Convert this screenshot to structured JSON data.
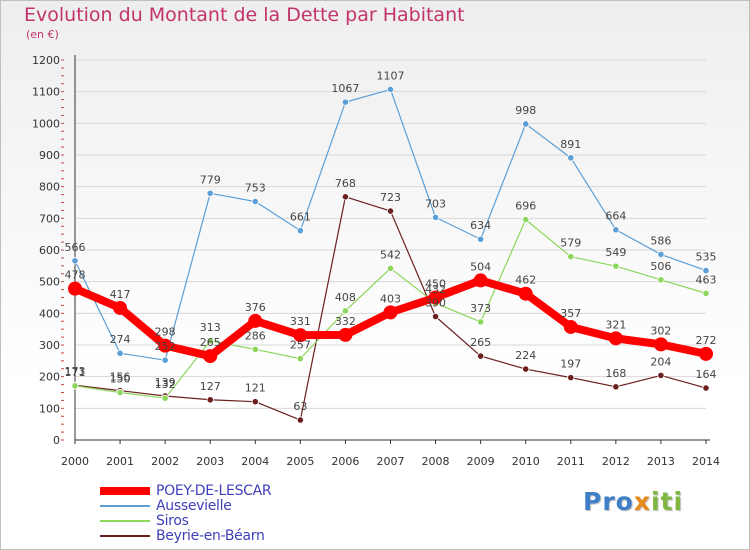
{
  "header": {
    "title": "Evolution du Montant de la Dette par Habitant",
    "unit": "(en €)"
  },
  "logo": {
    "part1": "Pro",
    "part2": "x",
    "part3": "iti"
  },
  "colors": {
    "axis": "#333333",
    "grid": "#d8d8d8",
    "tick_text": "#333333",
    "label_text": "#444444"
  },
  "chart_data": {
    "type": "line",
    "title": "Evolution du Montant de la Dette par Habitant",
    "subtitle": "(en €)",
    "xlabel": "",
    "ylabel": "",
    "x": [
      "2000",
      "2001",
      "2002",
      "2003",
      "2004",
      "2005",
      "2006",
      "2007",
      "2008",
      "2009",
      "2010",
      "2011",
      "2012",
      "2013",
      "2014"
    ],
    "ylim": [
      0,
      1200
    ],
    "yticks": [
      0,
      100,
      200,
      300,
      400,
      500,
      600,
      700,
      800,
      900,
      1000,
      1100,
      1200
    ],
    "grid": "horizontal",
    "legend": "bottom-left",
    "series": [
      {
        "name": "POEY-DE-LESCAR",
        "color": "#ff0000",
        "values": [
          478,
          417,
          298,
          265,
          376,
          331,
          332,
          403,
          450,
          504,
          462,
          357,
          321,
          302,
          272
        ],
        "labels": [
          "478",
          "417",
          "298",
          "265",
          "376",
          "331",
          "332",
          "403",
          "450",
          "504",
          "462",
          "357",
          "321",
          "302",
          "272"
        ]
      },
      {
        "name": "Aussevielle",
        "color": "#5c9fd6",
        "values": [
          566,
          274,
          252,
          779,
          753,
          661,
          1067,
          1107,
          703,
          634,
          998,
          891,
          664,
          586,
          535
        ],
        "labels": [
          "566",
          "274",
          "252",
          "779",
          "753",
          "661",
          "1067",
          "1107",
          "703",
          "634",
          "998",
          "891",
          "664",
          "586",
          "535"
        ]
      },
      {
        "name": "Siros",
        "color": "#8cd65c",
        "values": [
          171,
          150,
          132,
          313,
          286,
          257,
          408,
          542,
          432,
          373,
          696,
          579,
          549,
          506,
          463
        ],
        "labels": [
          "171",
          "150",
          "132",
          "313",
          "286",
          "257",
          "408",
          "542",
          "432",
          "373",
          "696",
          "579",
          "549",
          "506",
          "463"
        ]
      },
      {
        "name": "Beyrie-en-Béarn",
        "color": "#6b1f1f",
        "values": [
          173,
          156,
          139,
          127,
          121,
          63,
          768,
          723,
          390,
          265,
          224,
          197,
          168,
          204,
          164
        ],
        "labels": [
          "173",
          "156",
          "139",
          "127",
          "121",
          "63",
          "768",
          "723",
          "390",
          "265",
          "224",
          "197",
          "168",
          "204",
          "164"
        ]
      }
    ]
  }
}
